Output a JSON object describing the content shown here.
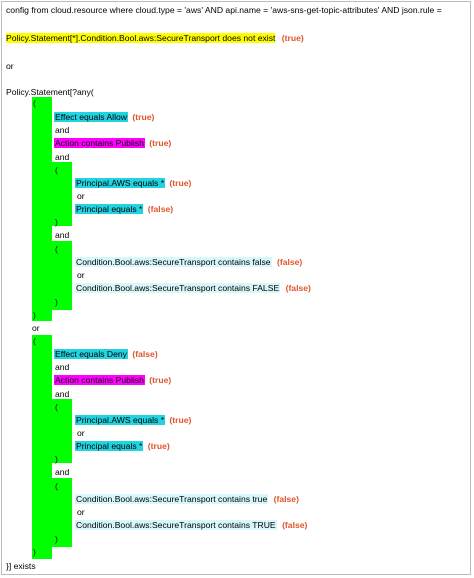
{
  "header": {
    "line1": "config from cloud.resource where cloud.type = 'aws' AND api.name = 'aws-sns-get-topic-attributes' AND json.rule =",
    "line2_text": "Policy.Statement[*].Condition.Bool.aws:SecureTransport does not exist",
    "line2_value": "(true)",
    "or_text": "or",
    "policy_start": "Policy.Statement[?any("
  },
  "block1": {
    "open": "(",
    "effect": "Effect equals Allow",
    "effect_value": "(true)",
    "and1": "and",
    "action": "Action contains Publish",
    "action_value": "(true)",
    "and2": "and",
    "open_inner1": "(",
    "principal_aws": "Principal.AWS equals *",
    "principal_aws_value": "(true)",
    "or_inner1": "or",
    "principal": "Principal equals *",
    "principal_value": "(false)",
    "close_inner1": ")",
    "and3": "and",
    "open_inner2": "(",
    "cond1": "Condition.Bool.aws:SecureTransport contains false",
    "cond1_value": "(false)",
    "or_inner2": "or",
    "cond2": "Condition.Bool.aws:SecureTransport contains FALSE",
    "cond2_value": "(false)",
    "close_inner2": ")",
    "close": ")"
  },
  "or_between": "or",
  "block2": {
    "open": "(",
    "effect": "Effect equals Deny",
    "effect_value": "(false)",
    "and1": "and",
    "action": "Action contains Publish",
    "action_value": "(true)",
    "and2": "and",
    "open_inner1": "(",
    "principal_aws": "Principal.AWS equals *",
    "principal_aws_value": "(true)",
    "or_inner1": "or",
    "principal": "Principal equals *",
    "principal_value": "(true)",
    "close_inner1": ")",
    "and3": "and",
    "open_inner2": "(",
    "cond1": "Condition.Bool.aws:SecureTransport contains true",
    "cond1_value": "(false)",
    "or_inner2": "or",
    "cond2": "Condition.Bool.aws:SecureTransport contains TRUE",
    "cond2_value": "(false)",
    "close_inner2": ")",
    "close": ")"
  },
  "footer": "}] exists",
  "colors": {
    "highlight_yellow": "#ffff00",
    "highlight_green": "#00ff00",
    "highlight_cyan": "#22d3e0",
    "highlight_cyan_light": "#d7f7fb",
    "highlight_magenta": "#ff00ff",
    "value_text": "#e0542b"
  }
}
